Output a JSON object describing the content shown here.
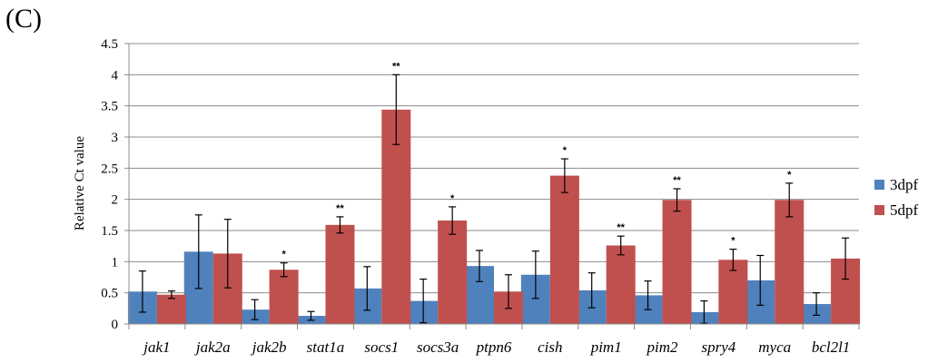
{
  "panel_label": "(C)",
  "chart_data": {
    "type": "bar",
    "title": "",
    "xlabel": "",
    "ylabel": "Relative Ct value",
    "ylim": [
      0,
      4.5
    ],
    "yticks": [
      "0",
      "0.5",
      "1",
      "1.5",
      "2",
      "2.5",
      "3",
      "3.5",
      "4",
      "4.5"
    ],
    "grid": true,
    "legend_position": "right",
    "categories": [
      "jak1",
      "jak2a",
      "jak2b",
      "stat1a",
      "socs1",
      "socs3a",
      "ptpn6",
      "cish",
      "pim1",
      "pim2",
      "spry4",
      "myca",
      "bcl2l1"
    ],
    "series": [
      {
        "name": "3dpf",
        "color": "#4F81BD",
        "values": [
          0.52,
          1.16,
          0.23,
          0.13,
          0.57,
          0.37,
          0.93,
          0.79,
          0.54,
          0.46,
          0.19,
          0.7,
          0.32
        ],
        "errors": [
          0.33,
          0.59,
          0.16,
          0.07,
          0.35,
          0.35,
          0.25,
          0.38,
          0.28,
          0.23,
          0.18,
          0.4,
          0.18
        ]
      },
      {
        "name": "5dpf",
        "color": "#C0504D",
        "values": [
          0.47,
          1.13,
          0.87,
          1.59,
          3.44,
          1.66,
          0.52,
          2.38,
          1.26,
          1.99,
          1.03,
          1.99,
          1.05
        ],
        "errors": [
          0.06,
          0.55,
          0.11,
          0.13,
          0.56,
          0.22,
          0.27,
          0.27,
          0.15,
          0.18,
          0.17,
          0.27,
          0.33
        ]
      }
    ],
    "significance": [
      "",
      "",
      "*",
      "**",
      "**",
      "*",
      "",
      "*",
      "**",
      "**",
      "*",
      "*",
      ""
    ]
  }
}
